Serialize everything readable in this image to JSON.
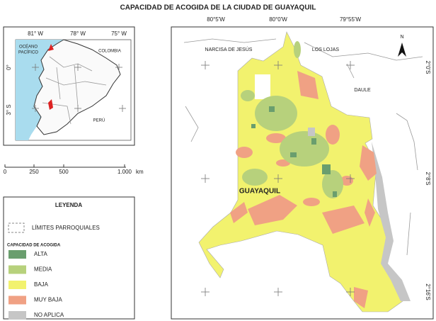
{
  "title": "CAPACIDAD DE ACOGIDA DE LA CIUDAD DE GUAYAQUIL",
  "inset_map": {
    "longitude_labels": [
      "81° W",
      "78° W",
      "75° W"
    ],
    "latitude_labels": [
      "0°",
      "3° S"
    ],
    "ocean_label": [
      "OCÉANO",
      "PACÍFICO"
    ],
    "country_labels": [
      "COLOMBIA",
      "PERÚ"
    ]
  },
  "scale_bar": {
    "labels": [
      "0",
      "250",
      "500",
      "1.000"
    ],
    "unit": "km"
  },
  "main_map": {
    "longitude_labels": [
      "80°5'W",
      "80°0'W",
      "79°55'W"
    ],
    "latitude_labels": [
      "2°0'S",
      "2°8'S",
      "2°16'S"
    ],
    "parish_labels": [
      "NARCISA DE JESÚS",
      "LOS LOJAS",
      "DAULE"
    ],
    "city_label": "GUAYAQUIL",
    "north_label": "N"
  },
  "legend": {
    "title": "LEYENDA",
    "boundary_label": "LÍMITES PARROQUIALES",
    "class_title": "CAPACIDAD DE ACOGIDA",
    "classes": [
      {
        "label": "ALTA",
        "color": "#6a9e6e"
      },
      {
        "label": "MEDIA",
        "color": "#b7d17c"
      },
      {
        "label": "BAJA",
        "color": "#f2f26e"
      },
      {
        "label": "MUY BAJA",
        "color": "#f0a184"
      },
      {
        "label": "NO APLICA",
        "color": "#c6c6c6"
      }
    ]
  }
}
